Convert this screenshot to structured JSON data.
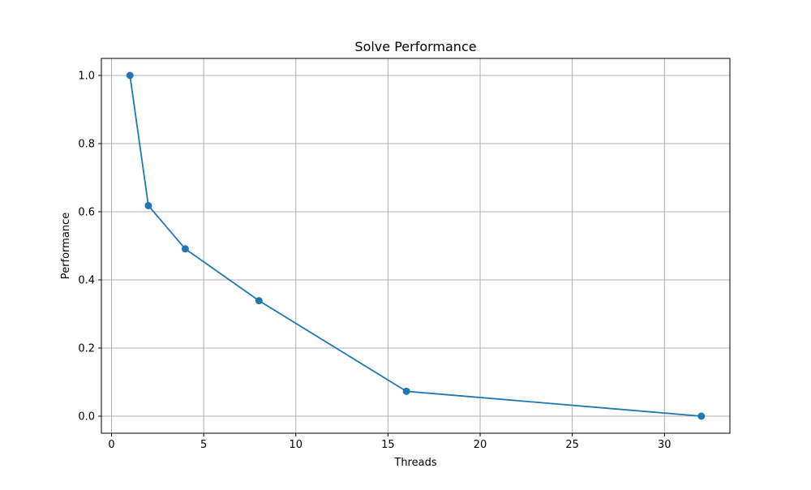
{
  "chart_data": {
    "type": "line",
    "title": "Solve Performance",
    "xlabel": "Threads",
    "ylabel": "Performance",
    "xlim": [
      -0.55,
      33.55
    ],
    "ylim": [
      -0.05,
      1.05
    ],
    "xticks": [
      0,
      5,
      10,
      15,
      20,
      25,
      30
    ],
    "yticks": [
      0.0,
      0.2,
      0.4,
      0.6,
      0.8,
      1.0
    ],
    "xtick_labels": [
      "0",
      "5",
      "10",
      "15",
      "20",
      "25",
      "30"
    ],
    "ytick_labels": [
      "0.0",
      "0.2",
      "0.4",
      "0.6",
      "0.8",
      "1.0"
    ],
    "grid": true,
    "legend": "none",
    "series": [
      {
        "color": "#1f77b4",
        "marker": "circle",
        "x": [
          1,
          2,
          4,
          8,
          16,
          32
        ],
        "y": [
          1.0,
          0.618,
          0.491,
          0.339,
          0.073,
          0.0
        ]
      }
    ]
  }
}
